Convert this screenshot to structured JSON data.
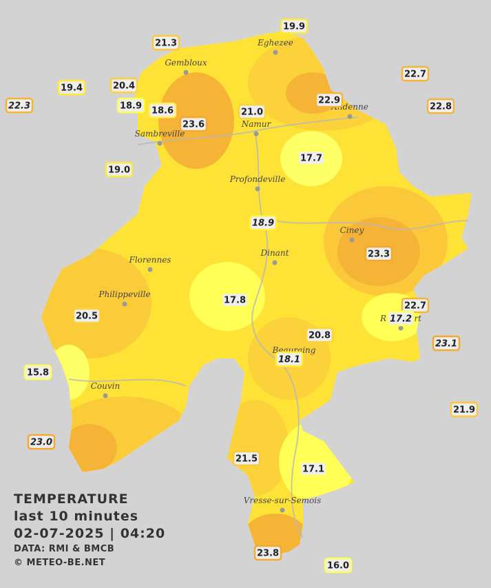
{
  "legend": {
    "title": "TEMPERATURE",
    "subtitle": "last 10 minutes",
    "timestamp": "02-07-2025  |  04:20",
    "source": "DATA: RMI & BMCB",
    "credit": "© METEO-BE.NET"
  },
  "cities": [
    "Eghezee",
    "Gembloux",
    "Andenne",
    "Namur",
    "Sambreville",
    "Profondeville",
    "Ciney",
    "Dinant",
    "Florennes",
    "Philippeville",
    "Rochefort",
    "Beauraing",
    "Couvin",
    "Vresse-sur-Semois"
  ],
  "stations": [
    {
      "label": "19.9",
      "border": "#ffe93a"
    },
    {
      "label": "21.3",
      "border": "#fbc83a"
    },
    {
      "label": "22.7",
      "border": "#f5b436"
    },
    {
      "label": "19.4",
      "border": "#ffe93a"
    },
    {
      "label": "20.4",
      "border": "#fcd23a"
    },
    {
      "label": "22.3",
      "border": "#f5b436",
      "style": "italic"
    },
    {
      "label": "18.9",
      "border": "#ffff55"
    },
    {
      "label": "18.6",
      "border": "#ffef5a"
    },
    {
      "label": "23.6",
      "border": "#f5a830"
    },
    {
      "label": "21.0",
      "border": "#fcd23a"
    },
    {
      "label": "22.9",
      "border": "#f5b436"
    },
    {
      "label": "22.8",
      "border": "#f5b436"
    },
    {
      "label": "17.7",
      "border": "#ffff66"
    },
    {
      "label": "19.0",
      "border": "#ffe93a"
    },
    {
      "label": "18.9",
      "border": "#ffef3a",
      "style": "italic"
    },
    {
      "label": "23.3",
      "border": "#f5a830"
    },
    {
      "label": "17.8",
      "border": "#ffff55"
    },
    {
      "label": "22.7",
      "border": "#f5b436"
    },
    {
      "label": "17.2",
      "border": "#ffff55",
      "style": "italic"
    },
    {
      "label": "20.5",
      "border": "#fcd23a"
    },
    {
      "label": "23.1",
      "border": "#f5a830",
      "style": "italic"
    },
    {
      "label": "20.8",
      "border": "#fcd23a"
    },
    {
      "label": "18.1",
      "border": "#ffef3a",
      "style": "italic"
    },
    {
      "label": "15.8",
      "border": "#ffff55"
    },
    {
      "label": "21.9",
      "border": "#fbc83a"
    },
    {
      "label": "23.0",
      "border": "#f5a830",
      "style": "italic"
    },
    {
      "label": "21.5",
      "border": "#fbc83a"
    },
    {
      "label": "17.1",
      "border": "#ffff55"
    },
    {
      "label": "23.8",
      "border": "#f5a830"
    },
    {
      "label": "16.0",
      "border": "#ffff55"
    }
  ]
}
